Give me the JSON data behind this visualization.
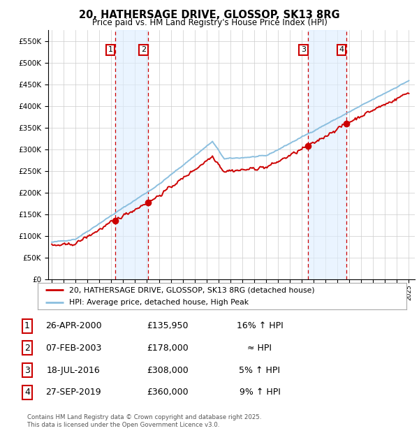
{
  "title": "20, HATHERSAGE DRIVE, GLOSSOP, SK13 8RG",
  "subtitle": "Price paid vs. HM Land Registry's House Price Index (HPI)",
  "ylim": [
    0,
    575000
  ],
  "yticks": [
    0,
    50000,
    100000,
    150000,
    200000,
    250000,
    300000,
    350000,
    400000,
    450000,
    500000,
    550000
  ],
  "ytick_labels": [
    "£0",
    "£50K",
    "£100K",
    "£150K",
    "£200K",
    "£250K",
    "£300K",
    "£350K",
    "£400K",
    "£450K",
    "£500K",
    "£550K"
  ],
  "xlim_start": 1994.7,
  "xlim_end": 2025.5,
  "sale_dates_decimal": [
    2000.32,
    2003.1,
    2016.54,
    2019.74
  ],
  "sale_prices": [
    135950,
    178000,
    308000,
    360000
  ],
  "sale_labels": [
    "1",
    "2",
    "3",
    "4"
  ],
  "legend_line1": "20, HATHERSAGE DRIVE, GLOSSOP, SK13 8RG (detached house)",
  "legend_line2": "HPI: Average price, detached house, High Peak",
  "table_rows": [
    [
      "1",
      "26-APR-2000",
      "£135,950",
      "16% ↑ HPI"
    ],
    [
      "2",
      "07-FEB-2003",
      "£178,000",
      "≈ HPI"
    ],
    [
      "3",
      "18-JUL-2016",
      "£308,000",
      "5% ↑ HPI"
    ],
    [
      "4",
      "27-SEP-2019",
      "£360,000",
      "9% ↑ HPI"
    ]
  ],
  "footnote": "Contains HM Land Registry data © Crown copyright and database right 2025.\nThis data is licensed under the Open Government Licence v3.0.",
  "hpi_color": "#8bbfdf",
  "price_color": "#cc0000",
  "vline_color": "#cc0000",
  "bg_color": "#ffffff",
  "grid_color": "#cccccc",
  "shade_color": "#ddeeff"
}
